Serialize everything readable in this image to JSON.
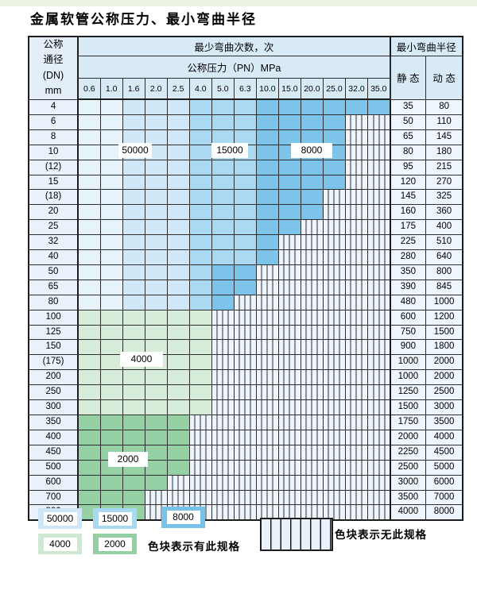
{
  "title": "金属软管公称压力、最小弯曲半径",
  "colors": {
    "L1": "#e7f3fb",
    "L2": "#cfe7f7",
    "M": "#abd9f2",
    "D": "#7dc4eb",
    "G1": "#d6ecd9",
    "G2": "#95d1a4",
    "S": "#eef4fb"
  },
  "table": {
    "header": {
      "dn_lines": [
        "公称",
        "通径",
        "(DN)",
        "mm"
      ],
      "bend_count_title": "最少弯曲次数，次",
      "pressure_title": "公称压力（PN）MPa",
      "pressures": [
        "0.6",
        "1.0",
        "1.6",
        "2.0",
        "2.5",
        "4.0",
        "5.0",
        "6.3",
        "10.0",
        "15.0",
        "20.0",
        "25.0",
        "32.0",
        "35.0"
      ],
      "radius_title": "最小弯曲半径",
      "static_label": "静 态",
      "dynamic_label": "动 态"
    },
    "rows": [
      {
        "dn": "4",
        "static": "35",
        "dynamic": "80",
        "cells": [
          "L1",
          "L1",
          "L2",
          "L2",
          "L2",
          "M",
          "M",
          "M",
          "D",
          "D",
          "D",
          "D",
          "D",
          "D"
        ]
      },
      {
        "dn": "6",
        "static": "50",
        "dynamic": "110",
        "cells": [
          "L1",
          "L1",
          "L2",
          "L2",
          "L2",
          "M",
          "M",
          "M",
          "D",
          "D",
          "D",
          "D",
          "S",
          "S"
        ]
      },
      {
        "dn": "8",
        "static": "65",
        "dynamic": "145",
        "cells": [
          "L1",
          "L1",
          "L2",
          "L2",
          "L2",
          "M",
          "M",
          "M",
          "D",
          "D",
          "D",
          "D",
          "S",
          "S"
        ]
      },
      {
        "dn": "10",
        "static": "80",
        "dynamic": "180",
        "cells": [
          "L1",
          "L1",
          "L2",
          "L2",
          "L2",
          "M",
          "M",
          "M",
          "D",
          "D",
          "D",
          "D",
          "S",
          "S"
        ]
      },
      {
        "dn": "(12)",
        "static": "95",
        "dynamic": "215",
        "cells": [
          "L1",
          "L1",
          "L2",
          "L2",
          "L2",
          "M",
          "M",
          "M",
          "D",
          "D",
          "D",
          "D",
          "S",
          "S"
        ]
      },
      {
        "dn": "15",
        "static": "120",
        "dynamic": "270",
        "cells": [
          "L1",
          "L1",
          "L2",
          "L2",
          "L2",
          "M",
          "M",
          "M",
          "D",
          "D",
          "D",
          "D",
          "S",
          "S"
        ]
      },
      {
        "dn": "(18)",
        "static": "145",
        "dynamic": "325",
        "cells": [
          "L1",
          "L1",
          "L2",
          "L2",
          "L2",
          "M",
          "M",
          "M",
          "D",
          "D",
          "D",
          "S",
          "S",
          "S"
        ]
      },
      {
        "dn": "20",
        "static": "160",
        "dynamic": "360",
        "cells": [
          "L1",
          "L1",
          "L2",
          "L2",
          "L2",
          "M",
          "M",
          "M",
          "D",
          "D",
          "D",
          "S",
          "S",
          "S"
        ]
      },
      {
        "dn": "25",
        "static": "175",
        "dynamic": "400",
        "cells": [
          "L1",
          "L1",
          "L2",
          "L2",
          "L2",
          "M",
          "M",
          "M",
          "D",
          "D",
          "S",
          "S",
          "S",
          "S"
        ]
      },
      {
        "dn": "32",
        "static": "225",
        "dynamic": "510",
        "cells": [
          "L1",
          "L1",
          "L2",
          "L2",
          "L2",
          "M",
          "M",
          "M",
          "D",
          "S",
          "S",
          "S",
          "S",
          "S"
        ]
      },
      {
        "dn": "40",
        "static": "280",
        "dynamic": "640",
        "cells": [
          "L1",
          "L1",
          "L2",
          "L2",
          "L2",
          "M",
          "M",
          "M",
          "D",
          "S",
          "S",
          "S",
          "S",
          "S"
        ]
      },
      {
        "dn": "50",
        "static": "350",
        "dynamic": "800",
        "cells": [
          "L1",
          "L1",
          "L2",
          "L2",
          "L2",
          "M",
          "D",
          "D",
          "S",
          "S",
          "S",
          "S",
          "S",
          "S"
        ]
      },
      {
        "dn": "65",
        "static": "390",
        "dynamic": "845",
        "cells": [
          "L1",
          "L1",
          "L2",
          "L2",
          "L2",
          "M",
          "D",
          "D",
          "S",
          "S",
          "S",
          "S",
          "S",
          "S"
        ]
      },
      {
        "dn": "80",
        "static": "480",
        "dynamic": "1000",
        "cells": [
          "L1",
          "L1",
          "L2",
          "L2",
          "L2",
          "M",
          "D",
          "S",
          "S",
          "S",
          "S",
          "S",
          "S",
          "S"
        ]
      },
      {
        "dn": "100",
        "static": "600",
        "dynamic": "1200",
        "cells": [
          "G1",
          "G1",
          "G1",
          "G1",
          "G1",
          "G1",
          "S",
          "S",
          "S",
          "S",
          "S",
          "S",
          "S",
          "S"
        ]
      },
      {
        "dn": "125",
        "static": "750",
        "dynamic": "1500",
        "cells": [
          "G1",
          "G1",
          "G1",
          "G1",
          "G1",
          "G1",
          "S",
          "S",
          "S",
          "S",
          "S",
          "S",
          "S",
          "S"
        ]
      },
      {
        "dn": "150",
        "static": "900",
        "dynamic": "1800",
        "cells": [
          "G1",
          "G1",
          "G1",
          "G1",
          "G1",
          "G1",
          "S",
          "S",
          "S",
          "S",
          "S",
          "S",
          "S",
          "S"
        ]
      },
      {
        "dn": "(175)",
        "static": "1000",
        "dynamic": "2000",
        "cells": [
          "G1",
          "G1",
          "G1",
          "G1",
          "G1",
          "G1",
          "S",
          "S",
          "S",
          "S",
          "S",
          "S",
          "S",
          "S"
        ]
      },
      {
        "dn": "200",
        "static": "1000",
        "dynamic": "2000",
        "cells": [
          "G1",
          "G1",
          "G1",
          "G1",
          "G1",
          "G1",
          "S",
          "S",
          "S",
          "S",
          "S",
          "S",
          "S",
          "S"
        ]
      },
      {
        "dn": "250",
        "static": "1250",
        "dynamic": "2500",
        "cells": [
          "G1",
          "G1",
          "G1",
          "G1",
          "G1",
          "G1",
          "S",
          "S",
          "S",
          "S",
          "S",
          "S",
          "S",
          "S"
        ]
      },
      {
        "dn": "300",
        "static": "1500",
        "dynamic": "3000",
        "cells": [
          "G1",
          "G1",
          "G1",
          "G1",
          "G1",
          "G1",
          "S",
          "S",
          "S",
          "S",
          "S",
          "S",
          "S",
          "S"
        ]
      },
      {
        "dn": "350",
        "static": "1750",
        "dynamic": "3500",
        "cells": [
          "G2",
          "G2",
          "G2",
          "G2",
          "G2",
          "S",
          "S",
          "S",
          "S",
          "S",
          "S",
          "S",
          "S",
          "S"
        ]
      },
      {
        "dn": "400",
        "static": "2000",
        "dynamic": "4000",
        "cells": [
          "G2",
          "G2",
          "G2",
          "G2",
          "G2",
          "S",
          "S",
          "S",
          "S",
          "S",
          "S",
          "S",
          "S",
          "S"
        ]
      },
      {
        "dn": "450",
        "static": "2250",
        "dynamic": "4500",
        "cells": [
          "G2",
          "G2",
          "G2",
          "G2",
          "G2",
          "S",
          "S",
          "S",
          "S",
          "S",
          "S",
          "S",
          "S",
          "S"
        ]
      },
      {
        "dn": "500",
        "static": "2500",
        "dynamic": "5000",
        "cells": [
          "G2",
          "G2",
          "G2",
          "G2",
          "G2",
          "S",
          "S",
          "S",
          "S",
          "S",
          "S",
          "S",
          "S",
          "S"
        ]
      },
      {
        "dn": "600",
        "static": "3000",
        "dynamic": "6000",
        "cells": [
          "G2",
          "G2",
          "G2",
          "G2",
          "S",
          "S",
          "S",
          "S",
          "S",
          "S",
          "S",
          "S",
          "S",
          "S"
        ]
      },
      {
        "dn": "700",
        "static": "3500",
        "dynamic": "7000",
        "cells": [
          "G2",
          "G2",
          "G2",
          "S",
          "S",
          "S",
          "S",
          "S",
          "S",
          "S",
          "S",
          "S",
          "S",
          "S"
        ]
      },
      {
        "dn": "800",
        "static": "4000",
        "dynamic": "8000",
        "cells": [
          "G2",
          "G2",
          "G2",
          "S",
          "S",
          "S",
          "S",
          "S",
          "S",
          "S",
          "S",
          "S",
          "S",
          "S"
        ]
      }
    ]
  },
  "zone_labels": [
    {
      "name": "zone-label-50000",
      "label": "50000"
    },
    {
      "name": "zone-label-15000",
      "label": "15000"
    },
    {
      "name": "zone-label-8000",
      "label": "8000"
    },
    {
      "name": "zone-label-4000",
      "label": "4000"
    },
    {
      "name": "zone-label-2000",
      "label": "2000"
    }
  ],
  "legend": {
    "swatches": [
      {
        "name": "swatch-50000",
        "label": "50000",
        "color": "#cfe6f7"
      },
      {
        "name": "swatch-15000",
        "label": "15000",
        "color": "#a9d8f1"
      },
      {
        "name": "swatch-8000",
        "label": "8000",
        "color": "#77c2e9"
      },
      {
        "name": "swatch-4000",
        "label": "4000",
        "color": "#cfe8d3"
      },
      {
        "name": "swatch-2000",
        "label": "2000",
        "color": "#94d0a3"
      }
    ],
    "present_note": "色块表示有此规格",
    "absent_note": "色块表示无此规格"
  }
}
